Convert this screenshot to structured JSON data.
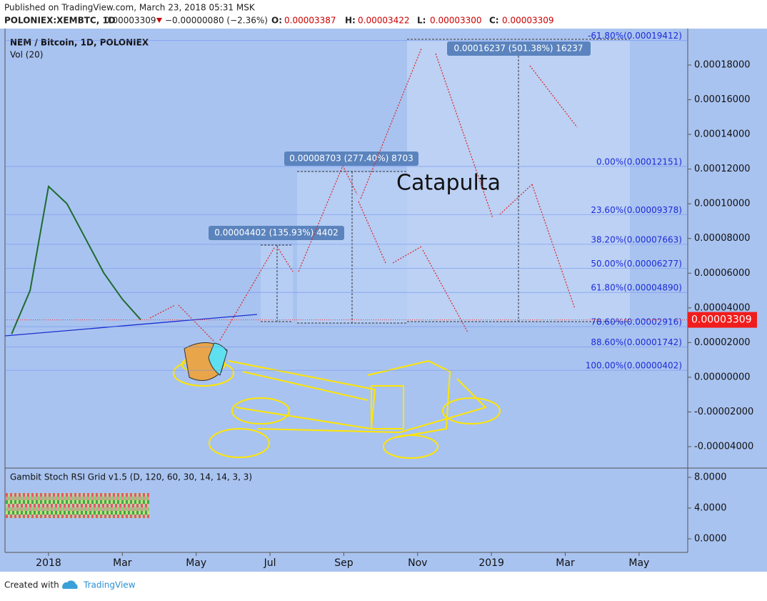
{
  "header": {
    "published": "Published on TradingView.com, March 23, 2018 05:31 MSK",
    "symbol": "POLONIEX:XEMBTC, 1D",
    "last": "0.00003309",
    "change": "−0.00000080 (−2.36%)",
    "ohlc": [
      {
        "label": "O:",
        "value": "0.00003387"
      },
      {
        "label": "H:",
        "value": "0.00003422"
      },
      {
        "label": "L:",
        "value": "0.00003300"
      },
      {
        "label": "C:",
        "value": "0.00003309"
      }
    ]
  },
  "chart_data": {
    "type": "line",
    "title": "NEM / Bitcoin, 1D, POLONIEX",
    "subtitle": "Vol (20)",
    "categories": [
      null,
      null,
      "2018",
      null,
      null,
      null,
      "Mar",
      null,
      null,
      null,
      "May",
      null,
      null,
      null,
      "Jul",
      null,
      null,
      null,
      "Sep",
      null,
      null,
      null,
      "Nov",
      null,
      null,
      null,
      "2019",
      null,
      null,
      null,
      "Mar",
      null,
      null,
      null,
      "May"
    ],
    "values": [
      2.5e-05,
      5e-05,
      0.00011,
      0.0001,
      8e-05,
      6e-05,
      4.5e-05,
      3.309e-05,
      null,
      null,
      null,
      null,
      null,
      null,
      null,
      null,
      null,
      null,
      null,
      null,
      null,
      null,
      null,
      null,
      null,
      null,
      null,
      null,
      null,
      null,
      null,
      null,
      null,
      null,
      null
    ],
    "color": "#1e6b2e",
    "ylim": [
      -5.03e-05,
      0.000201
    ],
    "yticks": [
      {
        "value": 0.00018,
        "label": "0.00018000"
      },
      {
        "value": 0.00016,
        "label": "0.00016000"
      },
      {
        "value": 0.00014,
        "label": "0.00014000"
      },
      {
        "value": 0.00012,
        "label": "0.00012000"
      },
      {
        "value": 0.0001,
        "label": "0.00010000"
      },
      {
        "value": 8e-05,
        "label": "0.00008000"
      },
      {
        "value": 6e-05,
        "label": "0.00006000"
      },
      {
        "value": 4e-05,
        "label": "0.00004000"
      },
      {
        "value": 2e-05,
        "label": "0.00002000"
      },
      {
        "value": 0,
        "label": "0.00000000"
      },
      {
        "value": -2e-05,
        "label": "-0.00002000"
      },
      {
        "value": -4e-05,
        "label": "-0.00004000"
      }
    ],
    "fib_levels": [
      {
        "value": 0.00019412,
        "label": "-61.80%(0.00019412)"
      },
      {
        "value": 0.00012151,
        "label": "0.00%(0.00012151)"
      },
      {
        "value": 9.378e-05,
        "label": "23.60%(0.00009378)"
      },
      {
        "value": 7.663e-05,
        "label": "38.20%(0.00007663)"
      },
      {
        "value": 6.277e-05,
        "label": "50.00%(0.00006277)"
      },
      {
        "value": 4.89e-05,
        "label": "61.80%(0.00004890)"
      },
      {
        "value": 2.916e-05,
        "label": "78.60%(0.00002916)"
      },
      {
        "value": 1.742e-05,
        "label": "88.60%(0.00001742)"
      },
      {
        "value": 4.02e-06,
        "label": "100.00%(0.00000402)"
      }
    ],
    "last_price": {
      "value": 3.309e-05,
      "label": "0.00003309"
    },
    "measures": [
      "0.00004402 (135.93%) 4402",
      "0.00008703 (277.40%) 8703",
      "0.00016237 (501.38%) 16237"
    ],
    "annotation": "Catapulta",
    "indicator": {
      "title": "Gambit Stoch RSI Grid v1.5 (D, 120, 60, 30, 14, 14, 3, 3)",
      "ylim": [
        -1.77,
        9.2
      ],
      "yticks": [
        {
          "value": 8,
          "label": "8.0000"
        },
        {
          "value": 4,
          "label": "4.0000"
        },
        {
          "value": 0,
          "label": "0.0000"
        }
      ]
    }
  },
  "footer": {
    "created": "Created with",
    "brand": "TradingView"
  }
}
